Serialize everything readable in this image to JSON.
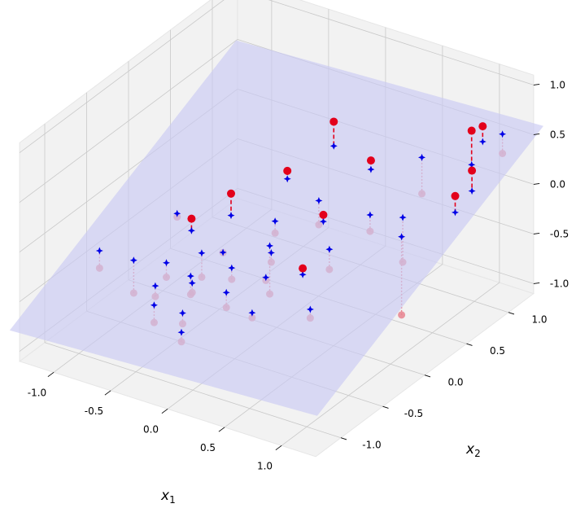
{
  "chart_data": {
    "type": "scatter",
    "projection": "3d",
    "grid": true,
    "xlabel": "x",
    "xlabel_sub": "1",
    "ylabel": "x",
    "ylabel_sub": "2",
    "xlim": [
      -1.3,
      1.3
    ],
    "ylim": [
      -1.3,
      1.3
    ],
    "zlim": [
      -1.1,
      1.1
    ],
    "xticks": [
      "-1.0",
      "-0.5",
      "0.0",
      "0.5",
      "1.0"
    ],
    "yticks": [
      "-1.0",
      "-0.5",
      "0.0",
      "0.5",
      "1.0"
    ],
    "zticks": [
      "-1.0",
      "-0.5",
      "0.0",
      "0.5",
      "1.0"
    ],
    "colors": {
      "above": "#e3001b",
      "below": "#e8848f",
      "projected": "#0000e6",
      "plane": "#c9c9f2",
      "pane": "#f2f2f2",
      "grid": "#c8c8c8"
    },
    "plane": {
      "z_at_origin": -0.1,
      "slope_x1": 0.05,
      "slope_x2": 0.45
    },
    "points": [
      {
        "x1": -1.15,
        "x2": -0.55,
        "z": -0.58
      },
      {
        "x1": -0.85,
        "x2": -0.55,
        "z": -0.72
      },
      {
        "x1": -0.45,
        "x2": -0.85,
        "z": -0.68
      },
      {
        "x1": -0.55,
        "x2": -0.7,
        "z": -0.55
      },
      {
        "x1": -0.4,
        "x2": -0.35,
        "z": -0.52
      },
      {
        "x1": -0.3,
        "x2": -0.6,
        "z": -0.48
      },
      {
        "x1": -0.2,
        "x2": -0.85,
        "z": -0.6
      },
      {
        "x1": -0.1,
        "x2": -0.4,
        "z": -0.4
      },
      {
        "x1": 0.0,
        "x2": -0.6,
        "z": -0.52
      },
      {
        "x1": 0.1,
        "x2": -0.2,
        "z": -0.28
      },
      {
        "x1": 0.2,
        "x2": -0.4,
        "z": -0.3
      },
      {
        "x1": 0.3,
        "x2": -0.7,
        "z": -0.45
      },
      {
        "x1": -0.6,
        "x2": -0.2,
        "z": -0.1
      },
      {
        "x1": -0.4,
        "x2": 0.0,
        "z": 0.1
      },
      {
        "x1": -0.2,
        "x2": 0.4,
        "z": 0.15
      },
      {
        "x1": 0.15,
        "x2": 0.3,
        "z": -0.2
      },
      {
        "x1": 0.3,
        "x2": 0.15,
        "z": 0.05
      },
      {
        "x1": -0.8,
        "x2": -0.1,
        "z": -0.22
      },
      {
        "x1": 0.35,
        "x2": 0.65,
        "z": 0.3
      },
      {
        "x1": 0.5,
        "x2": -0.05,
        "z": -0.3
      },
      {
        "x1": 0.6,
        "x2": 0.3,
        "z": -0.1
      },
      {
        "x1": 0.7,
        "x2": -0.55,
        "z": -0.4
      },
      {
        "x1": 0.45,
        "x2": -0.3,
        "z": -0.15
      },
      {
        "x1": 0.85,
        "x2": 0.35,
        "z": -0.35
      },
      {
        "x1": 1.05,
        "x2": 0.9,
        "z": 0.7
      },
      {
        "x1": 1.0,
        "x2": 1.1,
        "z": 0.6
      },
      {
        "x1": 1.2,
        "x2": 0.7,
        "z": 0.48
      },
      {
        "x1": 1.2,
        "x2": 0.5,
        "z": 0.35
      },
      {
        "x1": 1.1,
        "x2": 1.2,
        "z": 0.3
      },
      {
        "x1": -0.05,
        "x2": 0.75,
        "z": 0.48
      },
      {
        "x1": -0.25,
        "x2": -0.3,
        "z": -0.25
      },
      {
        "x1": -0.1,
        "x2": -1.0,
        "z": -0.65
      },
      {
        "x1": 0.95,
        "x2": 0.2,
        "z": -0.75
      },
      {
        "x1": 0.65,
        "x2": 0.85,
        "z": -0.05
      },
      {
        "x1": -0.6,
        "x2": -0.5,
        "z": -0.5
      },
      {
        "x1": -0.35,
        "x2": -0.55,
        "z": -0.55
      },
      {
        "x1": -0.05,
        "x2": 0.05,
        "z": -0.2
      },
      {
        "x1": 0.05,
        "x2": -0.15,
        "z": -0.65
      }
    ]
  }
}
